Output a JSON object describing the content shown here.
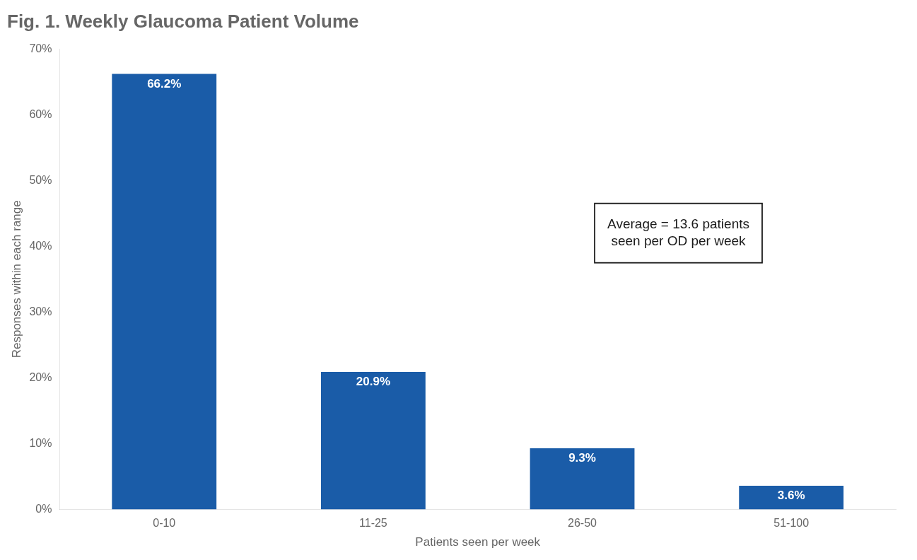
{
  "chart_data": {
    "type": "bar",
    "title": "Fig. 1. Weekly Glaucoma Patient Volume",
    "categories": [
      "0-10",
      "11-25",
      "26-50",
      "51-100"
    ],
    "values": [
      66.2,
      20.9,
      9.3,
      3.6
    ],
    "value_labels": [
      "66.2%",
      "20.9%",
      "9.3%",
      "3.6%"
    ],
    "data_labels": true,
    "color": "#1a5ca8",
    "xlabel": "Patients seen per week",
    "ylabel": "Responses within each range",
    "ylim": [
      0,
      70
    ],
    "yticks": [
      {
        "value": 0,
        "label": "0%"
      },
      {
        "value": 10,
        "label": "10%"
      },
      {
        "value": 20,
        "label": "20%"
      },
      {
        "value": 30,
        "label": "30%"
      },
      {
        "value": 40,
        "label": "40%"
      },
      {
        "value": 50,
        "label": "50%"
      },
      {
        "value": 60,
        "label": "60%"
      },
      {
        "value": 70,
        "label": "70%"
      }
    ],
    "annotations": [
      "Average = 13.6 patients\nseen per OD per week"
    ],
    "grid": false
  }
}
